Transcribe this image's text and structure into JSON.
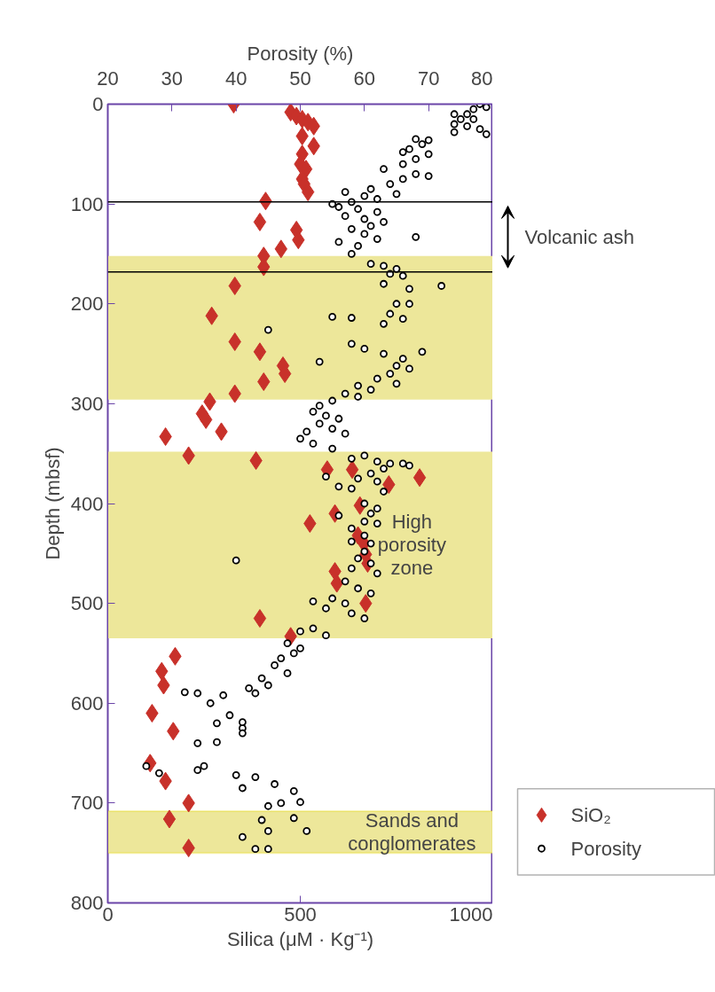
{
  "chart_data": {
    "type": "scatter",
    "xlabel": "Silica (μM · Kg⁻¹)",
    "x2label": "Porosity (%)",
    "ylabel": "Depth (mbsf)",
    "xlim": [
      0,
      1000
    ],
    "xticks": [
      0,
      500,
      1000
    ],
    "x2lim": [
      20,
      80
    ],
    "x2ticks": [
      20,
      30,
      40,
      50,
      60,
      70,
      80
    ],
    "ylim": [
      800,
      0
    ],
    "yticks": [
      0,
      100,
      200,
      300,
      400,
      500,
      600,
      700,
      800
    ],
    "grid": false,
    "legend": "bottom right",
    "series": [
      {
        "name": "SiO₂",
        "color": "#c8312a",
        "marker": "diamond",
        "x": [
          327,
          475,
          490,
          505,
          520,
          535,
          505,
          535,
          505,
          500,
          515,
          505,
          510,
          520,
          410,
          395,
          490,
          495,
          450,
          405,
          405,
          330,
          270,
          330,
          395,
          455,
          460,
          405,
          330,
          265,
          245,
          255,
          295,
          150,
          210,
          385,
          570,
          635,
          730,
          810,
          655,
          590,
          525,
          650,
          665,
          670,
          675,
          590,
          595,
          670,
          395,
          475,
          175,
          140,
          145,
          115,
          170,
          110,
          150,
          210,
          160,
          210
        ],
        "values": [
          0,
          8,
          12,
          15,
          18,
          22,
          32,
          42,
          50,
          60,
          65,
          75,
          80,
          88,
          97,
          118,
          126,
          136,
          145,
          152,
          163,
          182,
          212,
          238,
          248,
          262,
          270,
          278,
          290,
          298,
          310,
          316,
          328,
          333,
          352,
          357,
          366,
          366,
          381,
          374,
          402,
          410,
          420,
          432,
          440,
          451,
          460,
          468,
          480,
          500,
          515,
          533,
          553,
          568,
          582,
          610,
          628,
          660,
          678,
          700,
          716,
          745
        ]
      },
      {
        "name": "Porosity",
        "color": "#000000",
        "marker": "circle",
        "axis": "x2",
        "x": [
          78,
          79,
          77,
          76,
          74,
          75,
          77,
          74,
          76,
          78,
          79,
          74,
          68,
          70,
          69,
          67,
          66,
          70,
          68,
          66,
          63,
          68,
          70,
          66,
          64,
          61,
          57,
          65,
          60,
          62,
          58,
          55,
          56,
          59,
          62,
          57,
          60,
          63,
          61,
          58,
          60,
          62,
          56,
          59,
          58,
          68,
          61,
          63,
          65,
          64,
          66,
          63,
          67,
          72,
          65,
          67,
          55,
          58,
          64,
          63,
          66,
          45,
          58,
          60,
          53,
          63,
          66,
          69,
          65,
          67,
          64,
          62,
          65,
          59,
          61,
          57,
          59,
          55,
          53,
          52,
          54,
          56,
          53,
          55,
          51,
          57,
          50,
          52,
          55,
          58,
          60,
          62,
          64,
          63,
          66,
          67,
          61,
          59,
          62,
          54,
          56,
          58,
          63,
          60,
          62,
          61,
          56,
          60,
          62,
          58,
          60,
          58,
          61,
          60,
          59,
          61,
          58,
          62,
          57,
          59,
          61,
          55,
          52,
          57,
          54,
          58,
          60,
          52,
          50,
          54,
          40,
          48,
          50,
          49,
          47,
          46,
          48,
          44,
          45,
          42,
          43,
          38,
          36,
          39,
          37,
          41,
          32,
          34,
          37,
          34,
          41,
          41,
          28,
          34,
          35,
          40,
          41,
          43,
          46,
          49,
          50,
          49,
          51,
          44,
          45,
          41,
          43,
          45,
          47,
          45,
          26
        ],
        "values": [
          0,
          3,
          5,
          10,
          10,
          15,
          15,
          20,
          22,
          25,
          30,
          28,
          35,
          36,
          40,
          45,
          48,
          50,
          55,
          60,
          65,
          70,
          72,
          75,
          80,
          85,
          88,
          90,
          92,
          95,
          98,
          100,
          103,
          105,
          108,
          112,
          115,
          118,
          122,
          125,
          130,
          135,
          138,
          142,
          150,
          133,
          160,
          162,
          165,
          170,
          172,
          180,
          185,
          182,
          200,
          200,
          213,
          214,
          210,
          220,
          215,
          226,
          240,
          245,
          258,
          250,
          255,
          248,
          262,
          265,
          270,
          275,
          280,
          282,
          286,
          290,
          293,
          297,
          302,
          308,
          312,
          315,
          320,
          325,
          328,
          330,
          335,
          340,
          345,
          355,
          352,
          358,
          360,
          365,
          360,
          362,
          370,
          375,
          378,
          373,
          383,
          385,
          388,
          400,
          405,
          410,
          412,
          418,
          420,
          425,
          432,
          438,
          440,
          448,
          455,
          460,
          465,
          470,
          478,
          485,
          490,
          495,
          498,
          500,
          505,
          510,
          515,
          525,
          528,
          532,
          457,
          540,
          545,
          550,
          555,
          562,
          570,
          575,
          582,
          585,
          590,
          592,
          600,
          612,
          620,
          625,
          589,
          590,
          639,
          640,
          619,
          630,
          670,
          667,
          663,
          672,
          685,
          674,
          681,
          688,
          699,
          715,
          728,
          717,
          728,
          734,
          746,
          746,
          700,
          703,
          663
        ]
      }
    ],
    "ref_lines": [
      {
        "axis": "y",
        "value": 98,
        "color": "#000000"
      },
      {
        "axis": "y",
        "value": 168,
        "color": "#000000"
      }
    ],
    "bands": [
      {
        "axis": "y",
        "from": 152,
        "to": 296,
        "color": "#ede79a"
      },
      {
        "axis": "y",
        "from": 348,
        "to": 535,
        "label": "High porosity zone",
        "color": "#ede79a"
      },
      {
        "axis": "y",
        "from": 708,
        "to": 750,
        "label": "Sands and conglomerates",
        "color": "#ede79a"
      }
    ],
    "annotations": [
      "Volcanic ash"
    ]
  }
}
